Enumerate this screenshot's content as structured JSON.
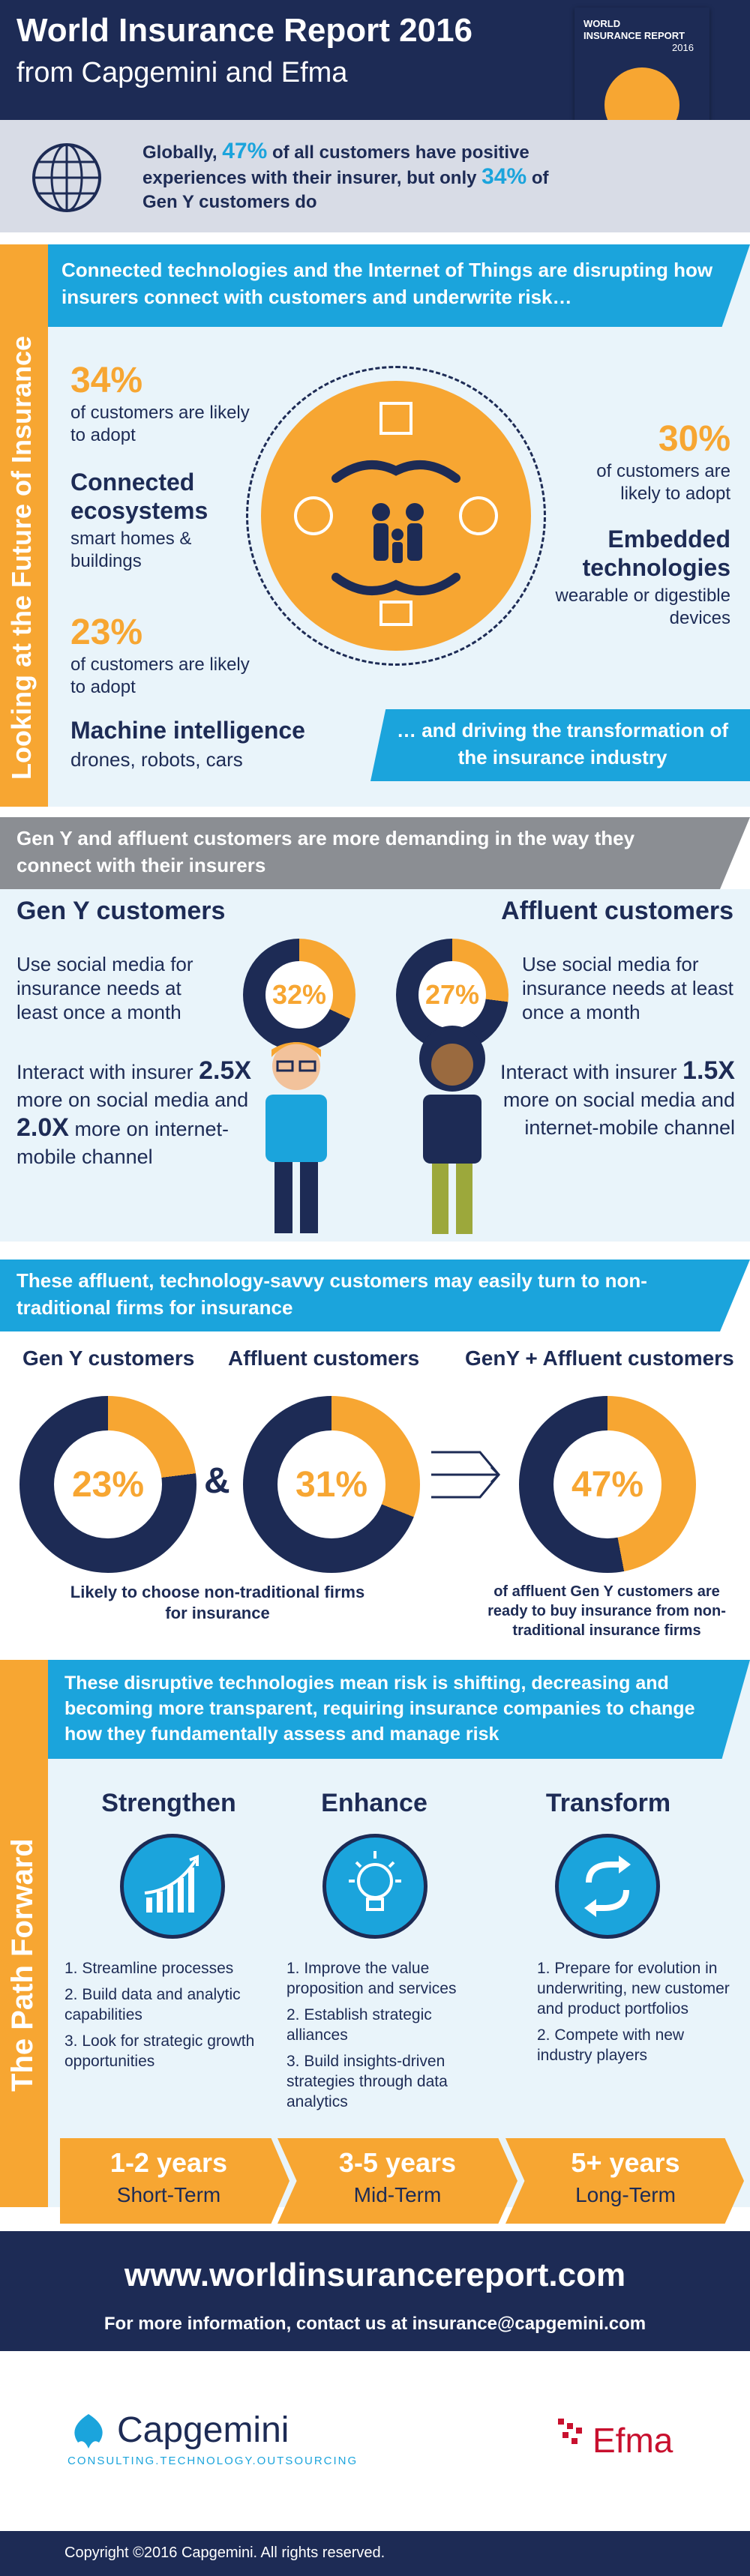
{
  "header": {
    "title": "World Insurance Report 2016",
    "subtitle": "from Capgemini and Efma",
    "cover": {
      "title_line1": "WORLD",
      "title_line2": "INSURANCE REPORT",
      "year": "2016"
    }
  },
  "intro": {
    "text_before": "Globally, ",
    "pct_all": "47%",
    "text_middle": " of all customers have positive experiences with their insurer, but only ",
    "pct_geny": "34%",
    "text_after": " of Gen Y customers do"
  },
  "future": {
    "side_label": "Looking at the Future of Insurance",
    "banner": "Connected technologies and the Internet of Things are disrupting how insurers connect with customers and underwrite risk…",
    "stat1": {
      "pct": "34%",
      "text": "of customers are likely to adopt",
      "title": "Connected ecosystems",
      "sub": "smart homes & buildings"
    },
    "stat2": {
      "pct": "30%",
      "text": "of customers are likely to adopt",
      "title": "Embedded technologies",
      "sub": "wearable or digestible devices"
    },
    "stat3": {
      "pct": "23%",
      "text": "of customers are likely to adopt",
      "title": "Machine intelligence",
      "sub": "drones, robots, cars"
    },
    "transform_banner": "… and driving the transformation of the insurance industry"
  },
  "demanding": {
    "banner": "Gen Y and affluent customers are more demanding in the way they connect with their insurers",
    "geny": {
      "heading": "Gen Y customers",
      "social": "Use social media for insurance needs at least once a month",
      "pct": "32%",
      "pct_value": 32,
      "interact_pre": "Interact with insurer ",
      "mult1": "2.5X",
      "mid": " more on social media and ",
      "mult2": "2.0X",
      "post": " more on internet-mobile channel"
    },
    "affluent": {
      "heading": "Affluent customers",
      "social": "Use social media for insurance needs at least once a month",
      "pct": "27%",
      "pct_value": 27,
      "interact_pre": "Interact with insurer ",
      "mult1": "1.5X",
      "post": " more on social media and internet-mobile channel"
    }
  },
  "nontraditional": {
    "banner": "These affluent, technology-savvy customers may easily turn to non-traditional firms for insurance",
    "col1": {
      "heading": "Gen Y customers",
      "pct": "23%",
      "value": 23
    },
    "amp": "&",
    "col2": {
      "heading": "Affluent customers",
      "pct": "31%",
      "value": 31
    },
    "col3": {
      "heading": "GenY + Affluent customers",
      "pct": "47%",
      "value": 47
    },
    "caption_left": "Likely to choose non-traditional firms for insurance",
    "caption_right": "of affluent Gen Y customers are ready to buy insurance from non-traditional insurance firms"
  },
  "path": {
    "side_label": "The Path Forward",
    "banner": "These disruptive technologies mean risk is shifting, decreasing and becoming more transparent, requiring insurance companies to change how they fundamentally assess and manage risk",
    "columns": [
      {
        "title": "Strengthen",
        "icon": "chart-growth-icon",
        "items": [
          "1. Streamline processes",
          "2. Build data and analytic capabilities",
          "3. Look for strategic growth opportunities"
        ]
      },
      {
        "title": "Enhance",
        "icon": "lightbulb-icon",
        "items": [
          "1. Improve the value proposition and services",
          "2. Establish strategic alliances",
          "3. Build insights-driven strategies through data analytics"
        ]
      },
      {
        "title": "Transform",
        "icon": "cycle-arrows-icon",
        "items": [
          "1. Prepare for evolution in underwriting, new customer and product portfolios",
          "2. Compete with new industry players"
        ]
      }
    ],
    "timeline": [
      {
        "years": "1-2 years",
        "term": "Short-Term"
      },
      {
        "years": "3-5 years",
        "term": "Mid-Term"
      },
      {
        "years": "5+ years",
        "term": "Long-Term"
      }
    ]
  },
  "footer": {
    "url": "www.worldinsurancereport.com",
    "contact": "For more information, contact us at insurance@capgemini.com",
    "capgemini": "Capgemini",
    "capgemini_tag": "CONSULTING.TECHNOLOGY.OUTSOURCING",
    "efma": "Efma",
    "copyright": "Copyright ©2016 Capgemini. All rights reserved."
  },
  "colors": {
    "navy": "#1d2b55",
    "blue": "#1ba4dc",
    "orange": "#f7a632",
    "pale": "#e9f4fa"
  }
}
